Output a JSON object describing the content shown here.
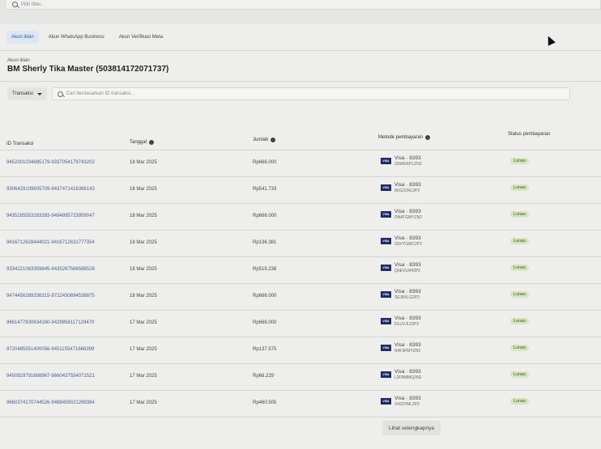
{
  "filter": {
    "placeholder": "Pilih filter..."
  },
  "tabs": [
    {
      "label": "Akun iklan",
      "active": true
    },
    {
      "label": "Akun WhatsApp Business",
      "active": false
    },
    {
      "label": "Akun Verifikasi Meta",
      "active": false
    }
  ],
  "account": {
    "label": "Akun iklan",
    "title": "BM Sherly Tika Master (503814172071737)"
  },
  "toolbar": {
    "dropdown": "Transaksi",
    "search_placeholder": "Cari berdasarkan ID transaksi..."
  },
  "table": {
    "headers": {
      "id": "ID Transaksi",
      "date": "Tanggal",
      "amount": "Jumlah",
      "method": "Metode pembayaran",
      "status": "Status pembayaran"
    },
    "rows": [
      {
        "id": "9452301034885179-9337054179743202",
        "date": "18 Mar 2025",
        "amount": "Rp666.000",
        "card": "Visa · 8393",
        "ref": "G6WEKPLZN2",
        "status": "Lunas"
      },
      {
        "id": "9306429109805709-9437471416368143",
        "date": "18 Mar 2025",
        "amount": "Rp541.733",
        "card": "Visa · 8393",
        "ref": "8UG22NL2P2",
        "status": "Lunas"
      },
      {
        "id": "9435185553263393-9494895723959047",
        "date": "18 Mar 2025",
        "amount": "Rp666.000",
        "card": "Visa · 8393",
        "ref": "DNATGMYZN2",
        "status": "Lunas"
      },
      {
        "id": "9416712628444021-9416712631777354",
        "date": "18 Mar 2025",
        "amount": "Rp136.381",
        "card": "Visa · 8393",
        "ref": "G5VYGMC2P2",
        "status": "Lunas"
      },
      {
        "id": "9334221083359845-9435267566588528",
        "date": "18 Mar 2025",
        "amount": "Rp519.238",
        "card": "Visa · 8393",
        "ref": "Q6EVLM42P2",
        "status": "Lunas"
      },
      {
        "id": "9474456289336315-9722430694538875",
        "date": "18 Mar 2025",
        "amount": "Rp666.000",
        "card": "Visa · 8393",
        "ref": "SEJ8XLG2P2",
        "status": "Lunas"
      },
      {
        "id": "9661477830634160-9429858117129470",
        "date": "17 Mar 2025",
        "amount": "Rp666.000",
        "card": "Visa · 8393",
        "ref": "DLUVJL02P2",
        "status": "Lunas"
      },
      {
        "id": "9720485551400056-9451155471666399",
        "date": "17 Mar 2025",
        "amount": "Rp137.575",
        "card": "Visa · 8393",
        "ref": "N4F3FMYZN2",
        "status": "Lunas"
      },
      {
        "id": "9450929791688967-9660437554071521",
        "date": "17 Mar 2025",
        "amount": "Rp66.229",
        "card": "Visa · 8393",
        "ref": "L3FBMMQ2N2",
        "status": "Lunas"
      },
      {
        "id": "9660374170744526-9488459021269384",
        "date": "17 Mar 2025",
        "amount": "Rp460.505",
        "card": "Visa · 8393",
        "ref": "X423YML2P2",
        "status": "Lunas"
      }
    ]
  },
  "visa_logo": "VISA",
  "more_button": "Lihat selengkapnya"
}
